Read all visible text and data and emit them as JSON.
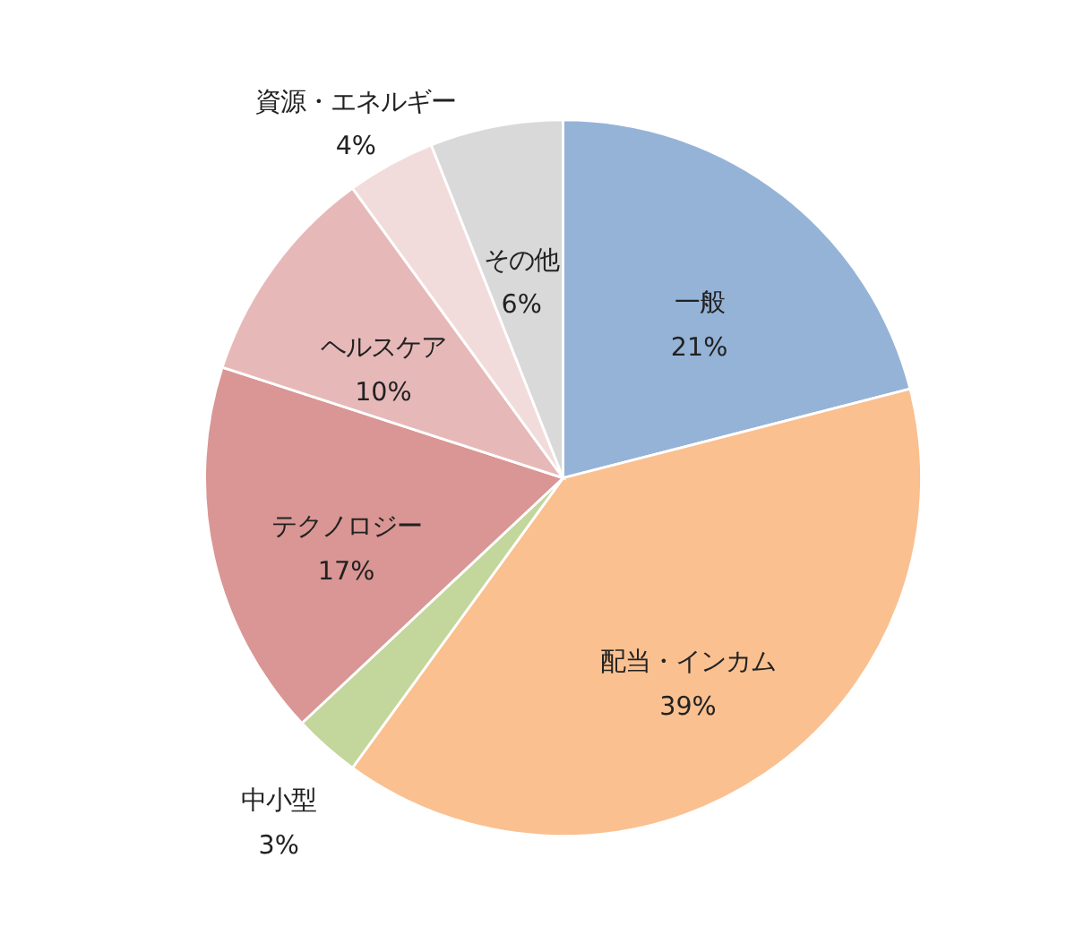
{
  "chart_data": {
    "type": "pie",
    "categories": [
      "一般",
      "配当・インカム",
      "中小型",
      "テクノロジー",
      "ヘルスケア",
      "資源・エネルギー",
      "その他"
    ],
    "values": [
      21,
      39,
      3,
      17,
      10,
      4,
      6
    ],
    "value_labels": [
      "21%",
      "39%",
      "3%",
      "17%",
      "10%",
      "4%",
      "6%"
    ],
    "colors": [
      "#95b3d7",
      "#fac090",
      "#c3d69b",
      "#d99694",
      "#e6b9b8",
      "#f2dcdb",
      "#d9d9d9"
    ]
  }
}
